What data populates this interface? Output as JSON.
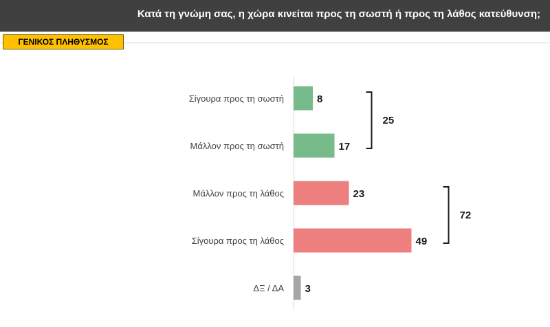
{
  "header": {
    "title": "Κατά τη γνώμη σας, η χώρα κινείται προς τη σωστή ή προς τη λάθος κατεύθυνση;"
  },
  "badge": {
    "label": "ΓΕΝΙΚΟΣ ΠΛΗΘΥΣΜΟΣ"
  },
  "chart_data": {
    "type": "bar",
    "orientation": "horizontal",
    "categories": [
      "Σίγουρα προς τη σωστή",
      "Μάλλον προς τη σωστή",
      "Μάλλον προς τη λάθος",
      "Σίγουρα προς τη λάθος",
      "ΔΞ / ΔΑ"
    ],
    "values": [
      8,
      17,
      23,
      49,
      3
    ],
    "colors": [
      "#77bb8a",
      "#77bb8a",
      "#ee7f7f",
      "#ee7f7f",
      "#a5a5a5"
    ],
    "groups": [
      {
        "total": "25",
        "from": 0,
        "to": 1
      },
      {
        "total": "72",
        "from": 2,
        "to": 3
      }
    ],
    "xlim": [
      0,
      50
    ]
  }
}
